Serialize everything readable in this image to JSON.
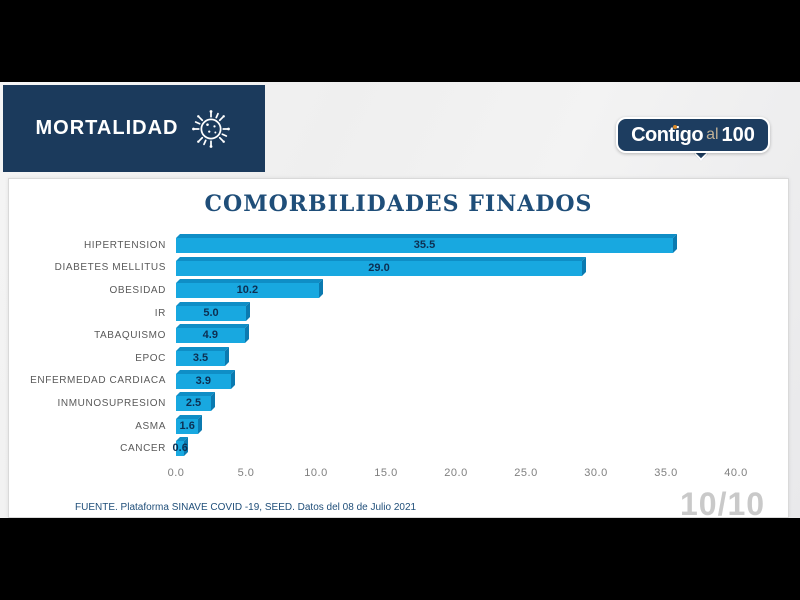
{
  "header": {
    "title": "MORTALIDAD",
    "icon": "coronavirus-icon"
  },
  "logo": {
    "text_primary_a": "Contigo",
    "text_secondary": "al",
    "text_primary_b": "100",
    "accent_color": "#d98b2b",
    "background_color": "#1d3d60"
  },
  "slide": {
    "page_indicator": "10/10",
    "source_note": "FUENTE. Plataforma SINAVE COVID -19, SEED. Datos del 08 de Julio 2021"
  },
  "chart_data": {
    "type": "bar",
    "orientation": "horizontal",
    "title": "COMORBILIDADES FINADOS",
    "categories": [
      "HIPERTENSION",
      "DIABETES MELLITUS",
      "OBESIDAD",
      "IR",
      "TABAQUISMO",
      "EPOC",
      "ENFERMEDAD CARDIACA",
      "INMUNOSUPRESION",
      "ASMA",
      "CANCER"
    ],
    "values": [
      35.5,
      29.0,
      10.2,
      5.0,
      4.9,
      3.5,
      3.9,
      2.5,
      1.6,
      0.6
    ],
    "value_labels": [
      "35.5",
      "29.0",
      "10.2",
      "5.0",
      "4.9",
      "3.5",
      "3.9",
      "2.5",
      "1.6",
      "0.6"
    ],
    "xlim": [
      0,
      40
    ],
    "x_ticks": [
      "0.0",
      "5.0",
      "10.0",
      "15.0",
      "20.0",
      "25.0",
      "30.0",
      "35.0",
      "40.0"
    ],
    "grid": false,
    "legend": "none",
    "bar_color": "#18a8e0",
    "bar_shadow_color": "#0b7ab0",
    "data_label_color": "#0d2f52"
  }
}
